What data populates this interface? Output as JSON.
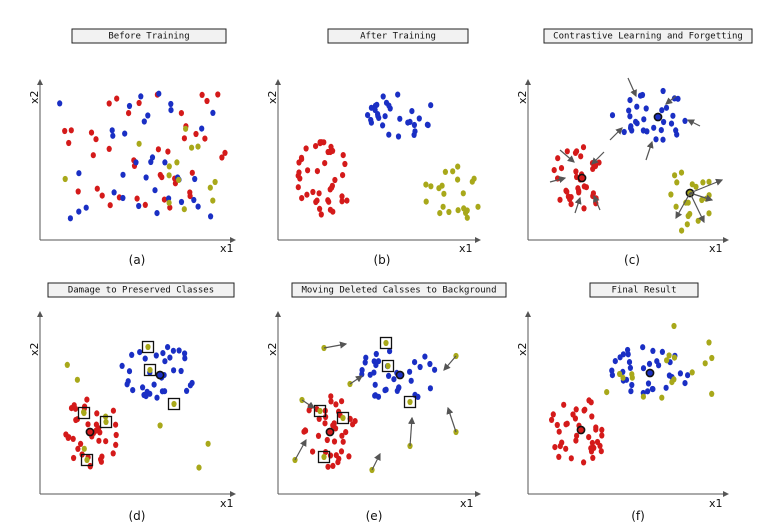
{
  "colors": {
    "red": "#d41a1a",
    "blue": "#1a2fc4",
    "olive": "#a8a81a",
    "arrow": "#555555",
    "center": "#111111"
  },
  "panels": [
    {
      "id": "a",
      "title": "Before Training",
      "caption": "(a)",
      "xlabel": "x1",
      "ylabel": "x2"
    },
    {
      "id": "b",
      "title": "After Training",
      "caption": "(b)",
      "xlabel": "x1",
      "ylabel": "x2"
    },
    {
      "id": "c",
      "title": "Contrastive Learning and Forgetting",
      "caption": "(c)",
      "xlabel": "x1",
      "ylabel": "x2"
    },
    {
      "id": "d",
      "title": "Damage to Preserved Classes",
      "caption": "(d)",
      "xlabel": "x1",
      "ylabel": "x2"
    },
    {
      "id": "e",
      "title": "Moving Deleted Calsses to Background",
      "caption": "(e)",
      "xlabel": "x1",
      "ylabel": "x2"
    },
    {
      "id": "f",
      "title": "Final Result",
      "caption": "(f)",
      "xlabel": "x1",
      "ylabel": "x2"
    }
  ]
}
